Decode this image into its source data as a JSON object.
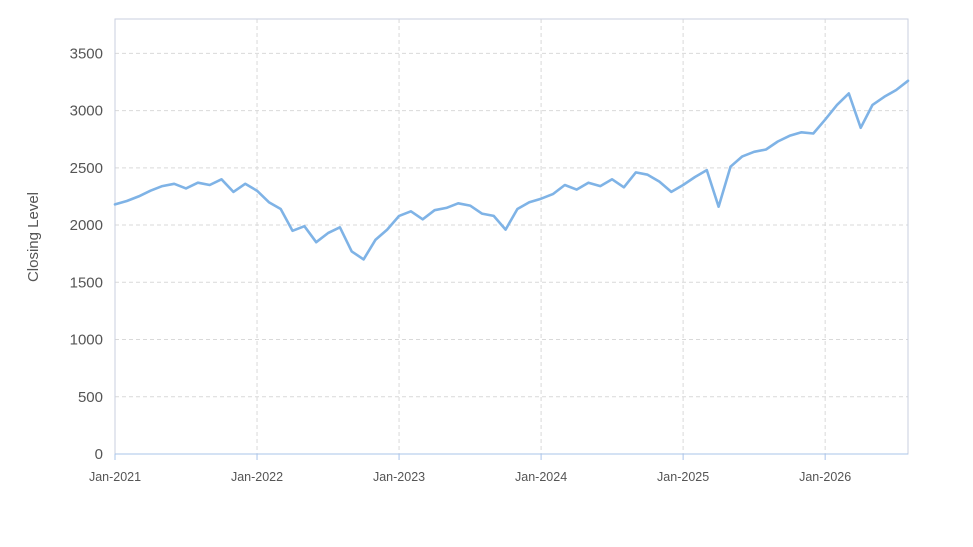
{
  "chart_data": {
    "type": "line",
    "ylabel": "Closing Level",
    "xlabel": "",
    "ylim": [
      0,
      3800
    ],
    "yticks": [
      0,
      500,
      1000,
      1500,
      2000,
      2500,
      3000,
      3500
    ],
    "ytick_labels": [
      "0",
      "500",
      "1000",
      "1500",
      "2000",
      "2500",
      "3000",
      "3500"
    ],
    "xlim": [
      "2021-01",
      "2026-08"
    ],
    "xtick_labels": [
      "Jan-2021",
      "Jan-2022",
      "Jan-2023",
      "Jan-2024",
      "Jan-2025",
      "Jan-2026"
    ],
    "grid": true,
    "series_color": "#7fb3e6",
    "series": [
      {
        "x": [
          "2021-01",
          "2021-02",
          "2021-03",
          "2021-04",
          "2021-05",
          "2021-06",
          "2021-07",
          "2021-08",
          "2021-09",
          "2021-10",
          "2021-11",
          "2021-12",
          "2022-01",
          "2022-02",
          "2022-03",
          "2022-04",
          "2022-05",
          "2022-06",
          "2022-07",
          "2022-08",
          "2022-09",
          "2022-10",
          "2022-11",
          "2022-12",
          "2023-01",
          "2023-02",
          "2023-03",
          "2023-04",
          "2023-05",
          "2023-06",
          "2023-07",
          "2023-08",
          "2023-09",
          "2023-10",
          "2023-11",
          "2023-12",
          "2024-01",
          "2024-02",
          "2024-03",
          "2024-04",
          "2024-05",
          "2024-06",
          "2024-07",
          "2024-08",
          "2024-09",
          "2024-10",
          "2024-11",
          "2024-12",
          "2025-01",
          "2025-02",
          "2025-03",
          "2025-04",
          "2025-05",
          "2025-06",
          "2025-07",
          "2025-08",
          "2025-09",
          "2025-10",
          "2025-11",
          "2025-12",
          "2026-01",
          "2026-02",
          "2026-03",
          "2026-04",
          "2026-05",
          "2026-06",
          "2026-07",
          "2026-08"
        ],
        "values": [
          2180,
          2210,
          2250,
          2300,
          2340,
          2360,
          2320,
          2370,
          2350,
          2400,
          2290,
          2360,
          2300,
          2200,
          2140,
          1950,
          1990,
          1850,
          1930,
          1980,
          1770,
          1700,
          1870,
          1960,
          2080,
          2120,
          2050,
          2130,
          2150,
          2190,
          2170,
          2100,
          2080,
          1960,
          2140,
          2200,
          2230,
          2270,
          2350,
          2310,
          2370,
          2340,
          2400,
          2330,
          2460,
          2440,
          2380,
          2290,
          2350,
          2420,
          2480,
          2160,
          2510,
          2600,
          2640,
          2660,
          2730,
          2780,
          2810,
          2800,
          2920,
          3050,
          3150,
          2850,
          3050,
          3120,
          3180,
          3260
        ]
      }
    ]
  }
}
